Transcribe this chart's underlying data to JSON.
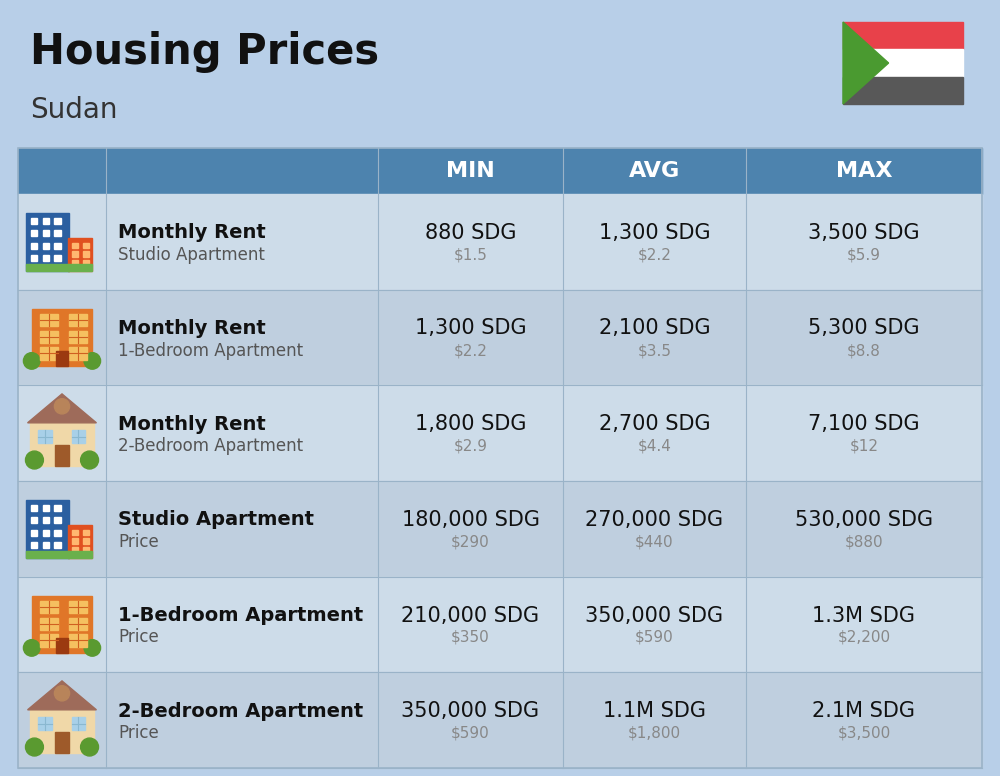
{
  "title": "Housing Prices",
  "subtitle": "Sudan",
  "background_color": "#b8cfe8",
  "header_color": "#4d83ae",
  "header_text_color": "#FFFFFF",
  "row_color_light": "#cddce9",
  "row_color_dark": "#bfcfdf",
  "divider_color": "#9ab3c8",
  "title_fontsize": 30,
  "subtitle_fontsize": 20,
  "header_labels": [
    "MIN",
    "AVG",
    "MAX"
  ],
  "rows": [
    {
      "bold_label": "Monthly Rent",
      "sub_label": "Studio Apartment",
      "min_sdg": "880 SDG",
      "min_usd": "$1.5",
      "avg_sdg": "1,300 SDG",
      "avg_usd": "$2.2",
      "max_sdg": "3,500 SDG",
      "max_usd": "$5.9",
      "icon_type": "city_blue"
    },
    {
      "bold_label": "Monthly Rent",
      "sub_label": "1-Bedroom Apartment",
      "min_sdg": "1,300 SDG",
      "min_usd": "$2.2",
      "avg_sdg": "2,100 SDG",
      "avg_usd": "$3.5",
      "max_sdg": "5,300 SDG",
      "max_usd": "$8.8",
      "icon_type": "city_orange"
    },
    {
      "bold_label": "Monthly Rent",
      "sub_label": "2-Bedroom Apartment",
      "min_sdg": "1,800 SDG",
      "min_usd": "$2.9",
      "avg_sdg": "2,700 SDG",
      "avg_usd": "$4.4",
      "max_sdg": "7,100 SDG",
      "max_usd": "$12",
      "icon_type": "house_beige"
    },
    {
      "bold_label": "Studio Apartment",
      "sub_label": "Price",
      "min_sdg": "180,000 SDG",
      "min_usd": "$290",
      "avg_sdg": "270,000 SDG",
      "avg_usd": "$440",
      "max_sdg": "530,000 SDG",
      "max_usd": "$880",
      "icon_type": "city_blue"
    },
    {
      "bold_label": "1-Bedroom Apartment",
      "sub_label": "Price",
      "min_sdg": "210,000 SDG",
      "min_usd": "$350",
      "avg_sdg": "350,000 SDG",
      "avg_usd": "$590",
      "max_sdg": "1.3M SDG",
      "max_usd": "$2,200",
      "icon_type": "city_orange"
    },
    {
      "bold_label": "2-Bedroom Apartment",
      "sub_label": "Price",
      "min_sdg": "350,000 SDG",
      "min_usd": "$590",
      "avg_sdg": "1.1M SDG",
      "avg_usd": "$1,800",
      "max_sdg": "2.1M SDG",
      "max_usd": "$3,500",
      "icon_type": "house_beige"
    }
  ],
  "sdg_fontsize": 15,
  "usd_fontsize": 11,
  "label_bold_fontsize": 14,
  "label_sub_fontsize": 12
}
